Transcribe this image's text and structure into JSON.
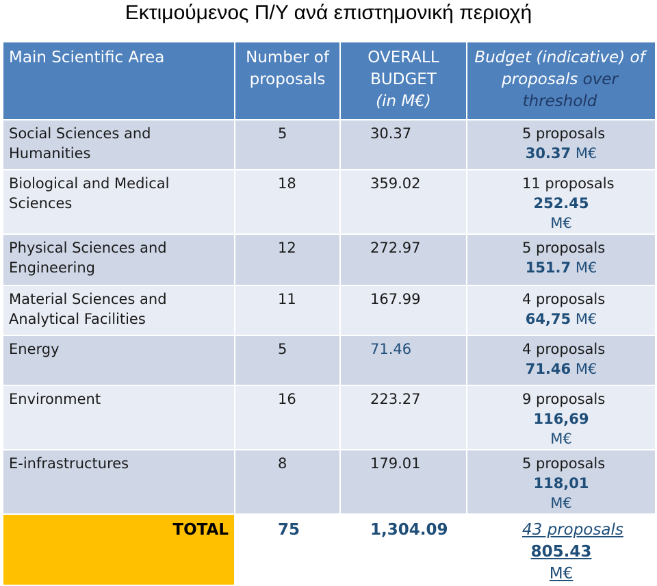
{
  "title": "Εκτιμούμενος Π/Υ ανά επιστημονική περιοχή",
  "header": {
    "area": "Main Scientific Area",
    "proposals_1": "Number of",
    "proposals_2": "proposals",
    "budget_1": "OVERALL",
    "budget_2": "BUDGET",
    "budget_3": "(in M€)",
    "threshold_1": "Budget  (indicative) of",
    "threshold_2a": "proposals",
    "threshold_2b": " over",
    "threshold_3": "threshold"
  },
  "rows": [
    {
      "area": "Social Sciences and Humanities",
      "proposals": "5",
      "budget": "30.37",
      "thr_count": "5 proposals",
      "thr_amount": "30.37",
      "unit": " M€"
    },
    {
      "area": "Biological and Medical Sciences",
      "proposals": "18",
      "budget": "359.02",
      "thr_count": "11 proposals",
      "thr_amount": "252.45",
      "unit": " M€"
    },
    {
      "area": "Physical Sciences and Engineering",
      "proposals": "12",
      "budget": "272.97",
      "thr_count": "5 proposals",
      "thr_amount": "151.7",
      "unit": " M€"
    },
    {
      "area": "Material Sciences and Analytical Facilities",
      "proposals": "11",
      "budget": "167.99",
      "thr_count": "4 proposals",
      "thr_amount": "64,75",
      "unit": " M€"
    },
    {
      "area": "Energy",
      "proposals": "5",
      "budget": "71.46",
      "thr_count": "4 proposals",
      "thr_amount": "71.46",
      "unit": " M€"
    },
    {
      "area": "Environment",
      "proposals": "16",
      "budget": "223.27",
      "thr_count": "9 proposals",
      "thr_amount": "116,69",
      "unit": " M€"
    },
    {
      "area": "E-infrastructures",
      "proposals": "8",
      "budget": "179.01",
      "thr_count": "5 proposals",
      "thr_amount": "118,01",
      "unit": " M€"
    }
  ],
  "total": {
    "label": "TOTAL",
    "proposals": "75",
    "budget": "1,304.09",
    "thr_count": "43 proposals",
    "thr_amount": "805.43",
    "unit": " M€"
  },
  "colors": {
    "header": "#4f81bd",
    "row_dark": "#cfd7e7",
    "row_light": "#e8ecf4",
    "total_highlight": "#ffc000",
    "navy_text": "#1f3864",
    "value_blue": "#1f4e79"
  }
}
